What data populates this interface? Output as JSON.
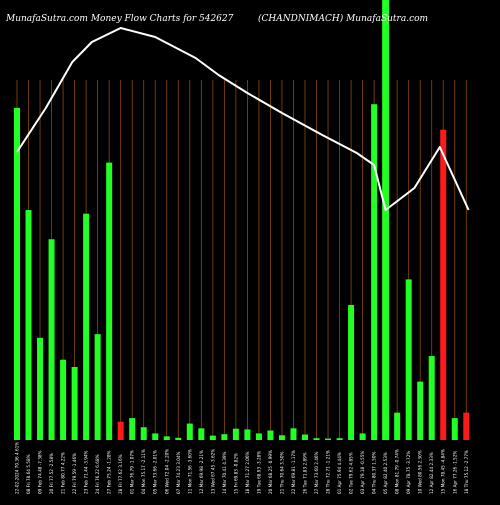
{
  "header": {
    "left": "MunafaSutra.com Money Flow  Charts for 542627",
    "right": "(CHANDNIMACH) MunafaSutra.com"
  },
  "colors": {
    "background": "#000000",
    "up": "#22ff22",
    "down": "#ff1a1a",
    "grid": "#8b4a0c",
    "price_line": "#ffffff",
    "text": "#ffffff"
  },
  "chart_data": {
    "type": "bar",
    "grid": true,
    "ylim": [
      0,
      100
    ],
    "bars": [
      {
        "value": 91,
        "dir": "up",
        "label": "22-02-2024 70.36 4.61% "
      },
      {
        "value": 63,
        "dir": "up",
        "label": "08 Fri 78.64 5.58% "
      },
      {
        "value": 28,
        "dir": "up",
        "label": "09 Feb 74.48 -7.38% "
      },
      {
        "value": 55,
        "dir": "up",
        "label": "20 Fri 77.52 -2.58% "
      },
      {
        "value": 22,
        "dir": "up",
        "label": "21 Feb 80.77 4.22% "
      },
      {
        "value": 20,
        "dir": "up",
        "label": "22 Fri 79.59 -1.46% "
      },
      {
        "value": 62,
        "dir": "up",
        "label": "23 Feb 71.44 -3.94% "
      },
      {
        "value": 29,
        "dir": "up",
        "label": "24 Fri 76.22 6.68% "
      },
      {
        "value": 76,
        "dir": "up",
        "label": "27 Feb 75.24 -1.28% "
      },
      {
        "value": 5,
        "dir": "down",
        "label": "28 Fri 77.62 3.16% "
      },
      {
        "value": 6,
        "dir": "up",
        "label": "01 Mar 76.79 -1.07% "
      },
      {
        "value": 3.5,
        "dir": "up",
        "label": "04 Mon 75.17 -2.11% "
      },
      {
        "value": 1.8,
        "dir": "up",
        "label": "05 Mar 73.66 -2.01% "
      },
      {
        "value": 1,
        "dir": "up",
        "label": "06 Wed 72.04 -2.20% "
      },
      {
        "value": 0.6,
        "dir": "up",
        "label": "07 Mar 74.23 3.04% "
      },
      {
        "value": 4.5,
        "dir": "up",
        "label": "11 Mon 71.56 -3.60% "
      },
      {
        "value": 3.2,
        "dir": "up",
        "label": "12 Mar 69.98 -2.21% "
      },
      {
        "value": 1.2,
        "dir": "up",
        "label": "13 Wed 67.45 -3.62% "
      },
      {
        "value": 1.6,
        "dir": "up",
        "label": "14 Mar 70.41 4.39% "
      },
      {
        "value": 3.1,
        "dir": "up",
        "label": "15 Fri 69.83 -0.82% "
      },
      {
        "value": 2.9,
        "dir": "up",
        "label": "18 Mar 71.27 2.06% "
      },
      {
        "value": 1.8,
        "dir": "up",
        "label": "19 Tue 68.93 -3.28% "
      },
      {
        "value": 2.6,
        "dir": "up",
        "label": "20 Mar 68.25 -0.99% "
      },
      {
        "value": 1.3,
        "dir": "up",
        "label": "21 Thu 70.64 3.50% "
      },
      {
        "value": 3.2,
        "dir": "up",
        "label": "22 Mar 69.81 -1.17% "
      },
      {
        "value": 1.5,
        "dir": "up",
        "label": "26 Tue 71.83 2.89% "
      },
      {
        "value": 0.5,
        "dir": "up",
        "label": "27 Mar 73.60 2.46% "
      },
      {
        "value": 0.4,
        "dir": "up",
        "label": "28 Thu 72.71 -1.21% "
      },
      {
        "value": 0.5,
        "dir": "up",
        "label": "01 Apr 75.94 4.44% "
      },
      {
        "value": 37,
        "dir": "up",
        "label": "02 Tue 79.62 4.85% "
      },
      {
        "value": 1.8,
        "dir": "up",
        "label": "03 Apr 79.18 -0.55% "
      },
      {
        "value": 92,
        "dir": "up",
        "label": "04 Thu 80.37 1.50% "
      },
      {
        "value": 100,
        "dir": "up",
        "label": "05 Apr 82.40 2.53% "
      },
      {
        "value": 7.5,
        "dir": "up",
        "label": "08 Mon 81.79 -0.74% "
      },
      {
        "value": 44,
        "dir": "up",
        "label": "09 Apr 78.75 -3.72% "
      },
      {
        "value": 16,
        "dir": "up",
        "label": "10 Wed 80.56 2.30% "
      },
      {
        "value": 23,
        "dir": "up",
        "label": "12 Apr 82.44 2.33% "
      },
      {
        "value": 85,
        "dir": "down",
        "label": "15 Mon 78.45 -4.84% "
      },
      {
        "value": 6,
        "dir": "up",
        "label": "16 Apr 77.26 -1.52% "
      },
      {
        "value": 7.5,
        "dir": "down",
        "label": "18 Thu 75.12 -2.77% "
      }
    ],
    "price_line": [
      {
        "bar": 0,
        "value": 132
      },
      {
        "bar": 2.5,
        "value": 88
      },
      {
        "bar": 4.8,
        "value": 42
      },
      {
        "bar": 6.5,
        "value": 22
      },
      {
        "bar": 9,
        "value": 8
      },
      {
        "bar": 12,
        "value": 17
      },
      {
        "bar": 15.5,
        "value": 38
      },
      {
        "bar": 17.5,
        "value": 55
      },
      {
        "bar": 20,
        "value": 73
      },
      {
        "bar": 23,
        "value": 93
      },
      {
        "bar": 26.5,
        "value": 115
      },
      {
        "bar": 29.5,
        "value": 133
      },
      {
        "bar": 31,
        "value": 145
      },
      {
        "bar": 32,
        "value": 190
      },
      {
        "bar": 34.5,
        "value": 168
      },
      {
        "bar": 36.7,
        "value": 127
      },
      {
        "bar": 39.2,
        "value": 190
      }
    ]
  }
}
